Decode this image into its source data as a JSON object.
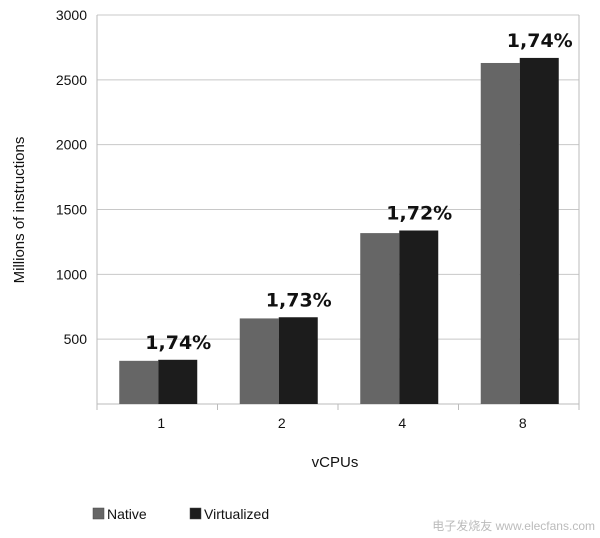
{
  "chart_data": {
    "type": "bar",
    "title": "",
    "xlabel": "vCPUs",
    "ylabel": "Millions of instructions",
    "categories": [
      "1",
      "2",
      "4",
      "8"
    ],
    "series": [
      {
        "name": "Native",
        "values": [
          333,
          660,
          1318,
          2630
        ],
        "color": "#666666"
      },
      {
        "name": "Virtualized",
        "values": [
          341,
          669,
          1338,
          2669
        ],
        "color": "#1c1c1c"
      }
    ],
    "data_labels": [
      "1,74%",
      "1,73%",
      "1,72%",
      "1,74%"
    ],
    "ylim": [
      0,
      3000
    ],
    "yticks": [
      500,
      1000,
      1500,
      2000,
      2500,
      3000
    ],
    "grid": true,
    "legend": "bottom-left"
  },
  "watermark": "电子发烧友 www.elecfans.com"
}
